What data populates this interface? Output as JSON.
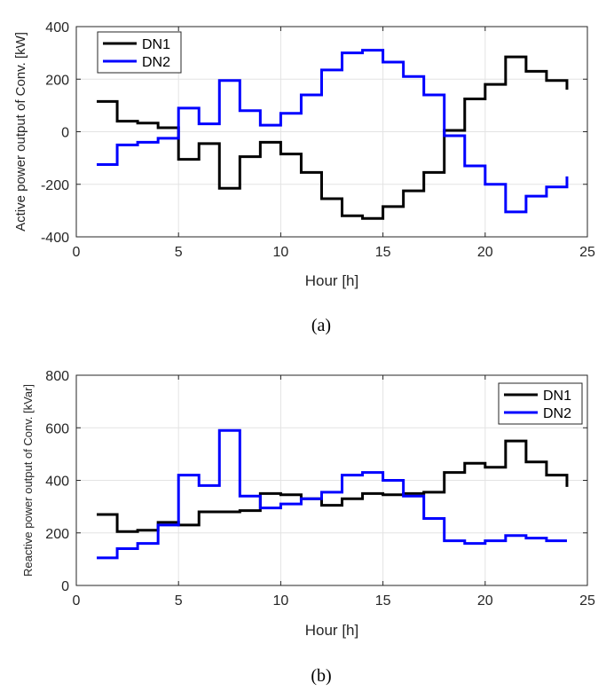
{
  "chart_data": [
    {
      "type": "line",
      "step": "post",
      "xlabel": "Hour [h]",
      "ylabel": "Active power output of Conv. [kW]",
      "xlim": [
        0,
        25
      ],
      "ylim": [
        -400,
        400
      ],
      "xticks": [
        0,
        5,
        10,
        15,
        20,
        25
      ],
      "yticks": [
        -400,
        -200,
        0,
        200,
        400
      ],
      "grid": true,
      "legend": "top-left",
      "caption": "(a)",
      "x": [
        1,
        2,
        3,
        4,
        5,
        6,
        7,
        8,
        9,
        10,
        11,
        12,
        13,
        14,
        15,
        16,
        17,
        18,
        19,
        20,
        21,
        22,
        23,
        24
      ],
      "series": [
        {
          "name": "DN1",
          "color": "#000000",
          "values": [
            115,
            40,
            33,
            15,
            -105,
            -45,
            -215,
            -95,
            -40,
            -85,
            -155,
            -255,
            -320,
            -330,
            -285,
            -225,
            -155,
            5,
            125,
            180,
            285,
            230,
            195,
            160
          ]
        },
        {
          "name": "DN2",
          "color": "#0000ff",
          "values": [
            -125,
            -50,
            -40,
            -25,
            90,
            30,
            195,
            80,
            25,
            70,
            140,
            235,
            300,
            310,
            265,
            210,
            140,
            -15,
            -130,
            -200,
            -305,
            -245,
            -210,
            -170
          ]
        }
      ]
    },
    {
      "type": "line",
      "step": "post",
      "xlabel": "Hour [h]",
      "ylabel": "Reactive power output of Conv. [kVar]",
      "xlim": [
        0,
        25
      ],
      "ylim": [
        0,
        800
      ],
      "xticks": [
        0,
        5,
        10,
        15,
        20,
        25
      ],
      "yticks": [
        0,
        200,
        400,
        600,
        800
      ],
      "grid": true,
      "legend": "top-right",
      "caption": "(b)",
      "x": [
        1,
        2,
        3,
        4,
        5,
        6,
        7,
        8,
        9,
        10,
        11,
        12,
        13,
        14,
        15,
        16,
        17,
        18,
        19,
        20,
        21,
        22,
        23,
        24
      ],
      "series": [
        {
          "name": "DN1",
          "color": "#000000",
          "values": [
            270,
            205,
            210,
            240,
            230,
            280,
            280,
            285,
            350,
            345,
            330,
            305,
            330,
            350,
            345,
            350,
            355,
            430,
            465,
            450,
            550,
            470,
            420,
            375
          ]
        },
        {
          "name": "DN2",
          "color": "#0000ff",
          "values": [
            105,
            140,
            160,
            230,
            420,
            380,
            590,
            340,
            295,
            310,
            330,
            355,
            420,
            430,
            400,
            340,
            255,
            170,
            160,
            170,
            190,
            180,
            170,
            170
          ]
        }
      ]
    }
  ]
}
